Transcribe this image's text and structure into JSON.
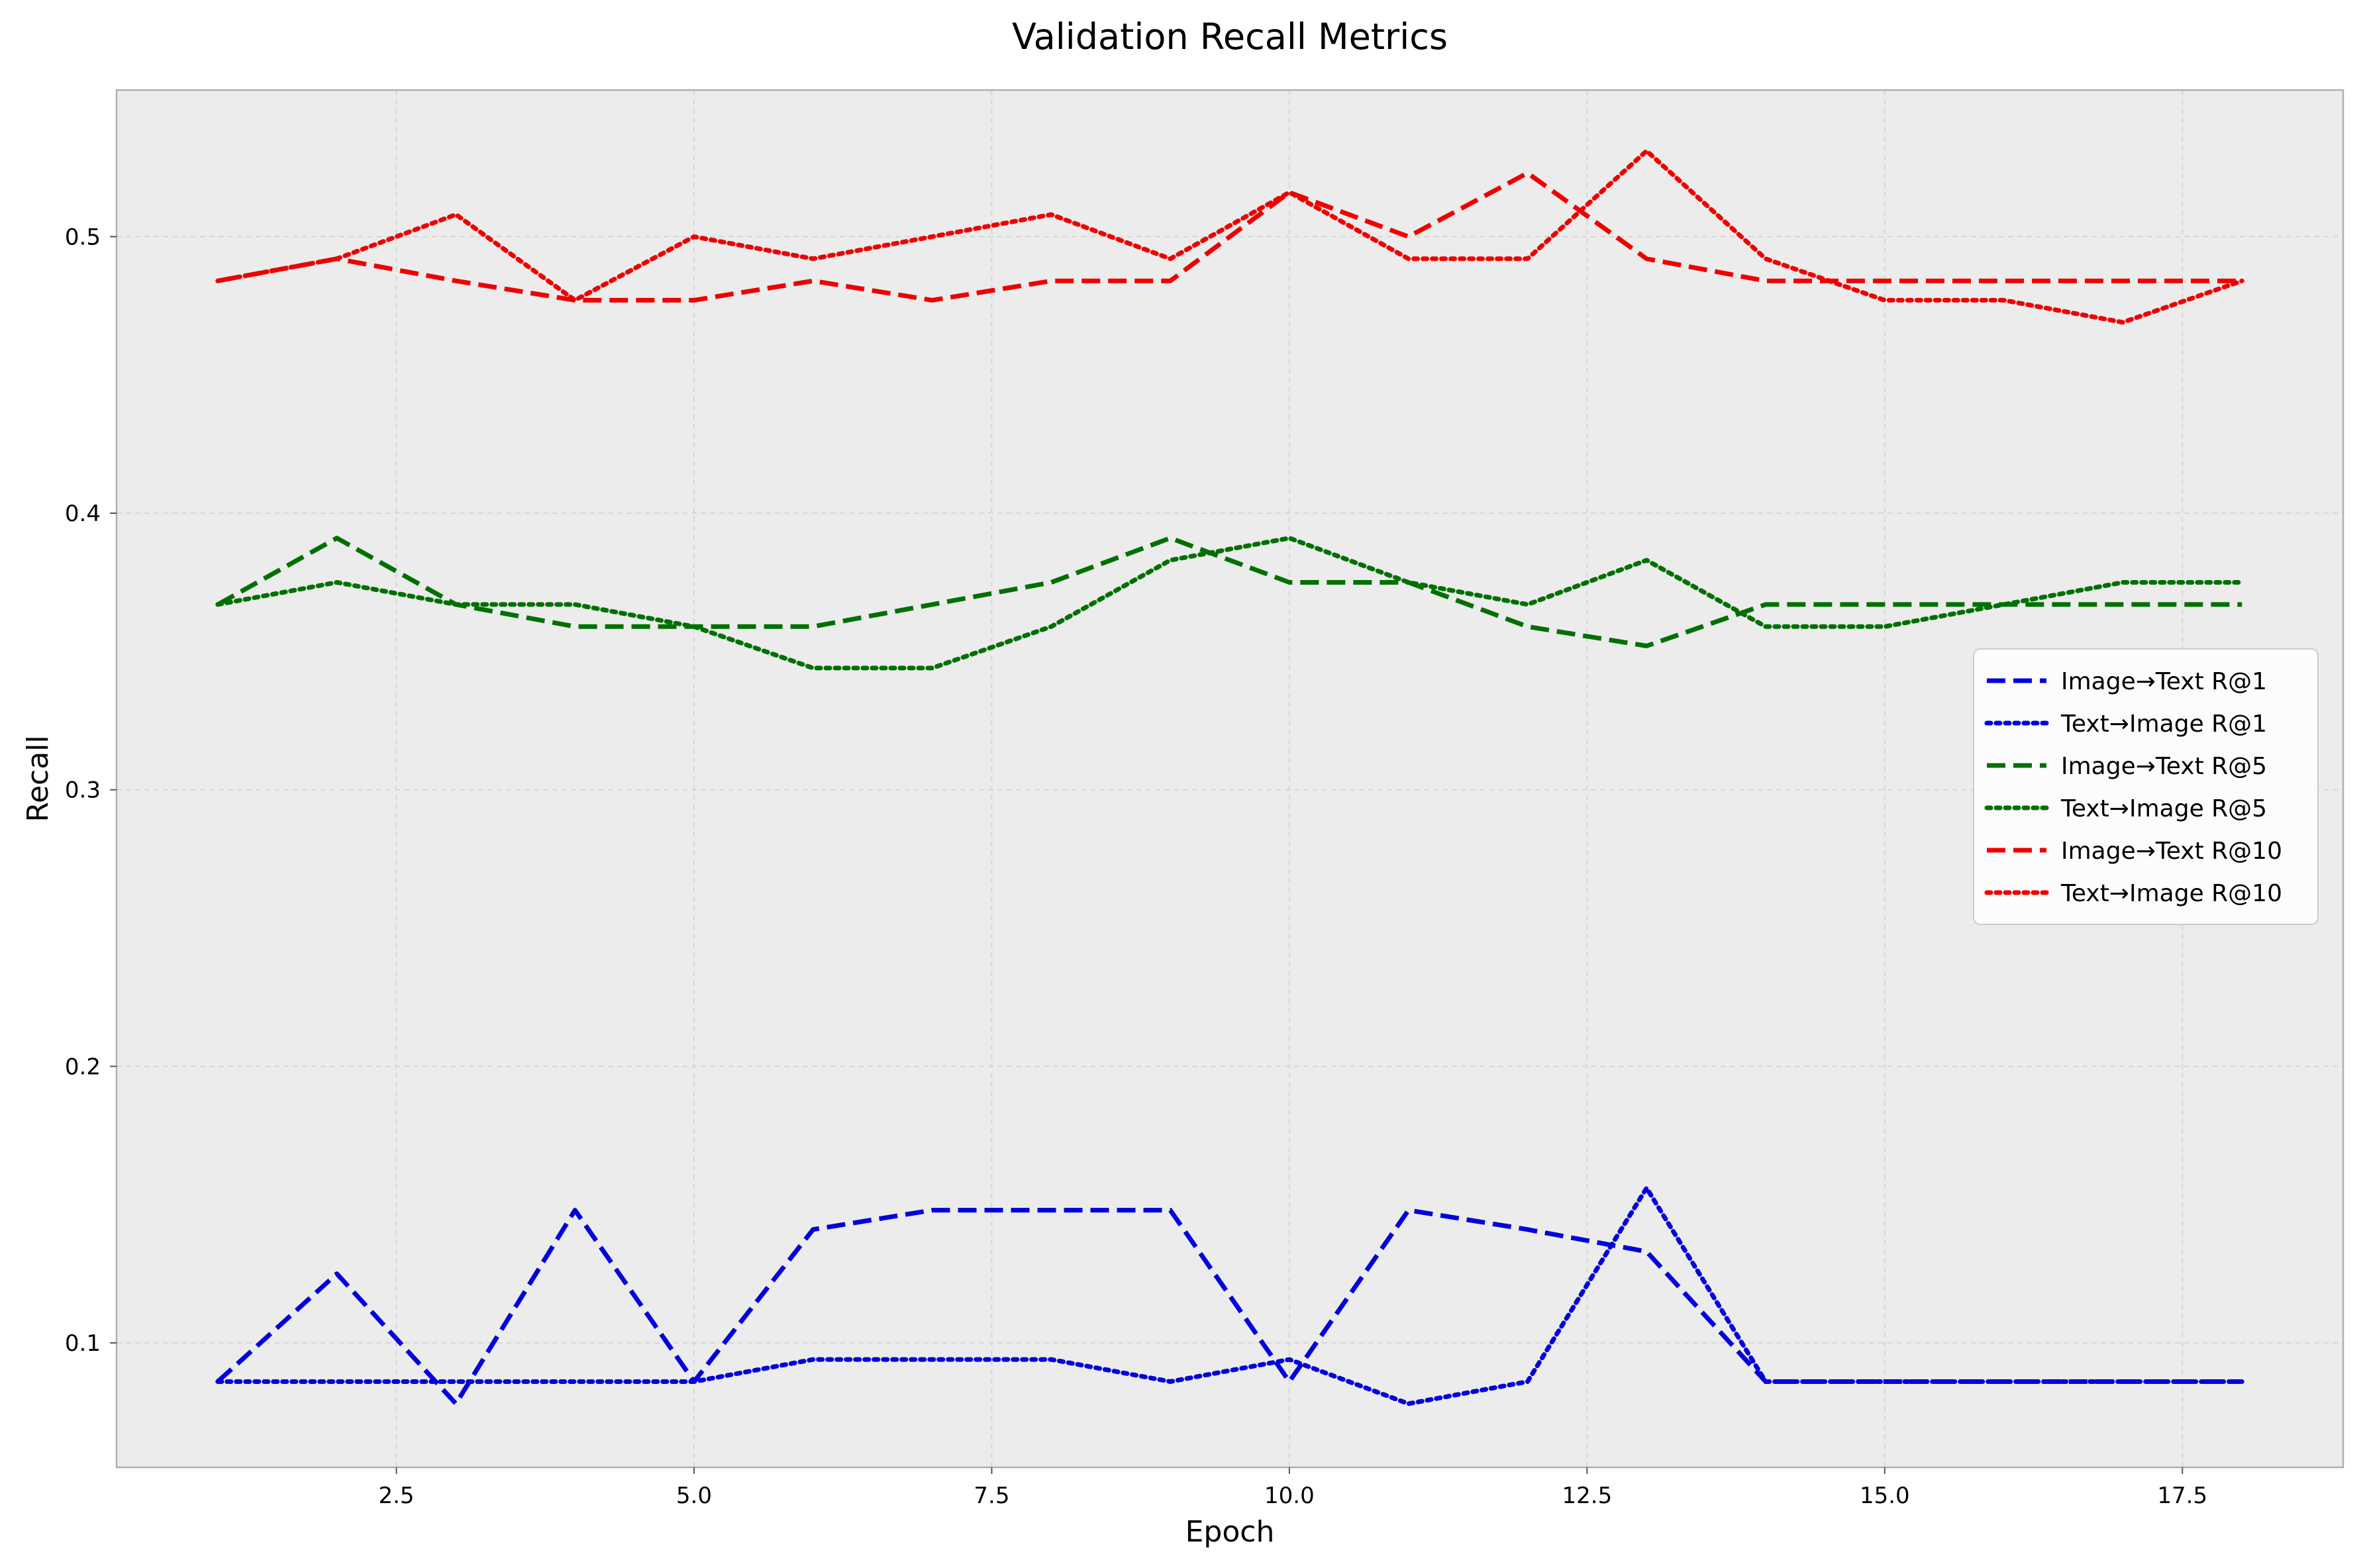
{
  "chart_data": {
    "type": "line",
    "title": "Validation Recall Metrics",
    "xlabel": "Epoch",
    "ylabel": "Recall",
    "xlim": [
      0.15,
      18.85
    ],
    "ylim": [
      0.055,
      0.553
    ],
    "x_ticks": [
      2.5,
      5.0,
      7.5,
      10.0,
      12.5,
      15.0,
      17.5
    ],
    "x_tick_labels": [
      "2.5",
      "5.0",
      "7.5",
      "10.0",
      "12.5",
      "15.0",
      "17.5"
    ],
    "y_ticks": [
      0.1,
      0.2,
      0.3,
      0.4,
      0.5
    ],
    "y_tick_labels": [
      "0.1",
      "0.2",
      "0.3",
      "0.4",
      "0.5"
    ],
    "grid": true,
    "background": "#ececec",
    "legend_position": "center-right",
    "x": [
      1,
      2,
      3,
      4,
      5,
      6,
      7,
      8,
      9,
      10,
      11,
      12,
      13,
      14,
      15,
      16,
      17,
      18
    ],
    "series": [
      {
        "name": "Image→Text R@1",
        "color": "#0000dd",
        "style": "dashed",
        "values": [
          0.086,
          0.125,
          0.078,
          0.148,
          0.086,
          0.141,
          0.148,
          0.148,
          0.148,
          0.086,
          0.148,
          0.141,
          0.133,
          0.086,
          0.086,
          0.086,
          0.086,
          0.086
        ]
      },
      {
        "name": "Text→Image R@1",
        "color": "#0000dd",
        "style": "dotted",
        "values": [
          0.086,
          0.086,
          0.086,
          0.086,
          0.086,
          0.094,
          0.094,
          0.094,
          0.086,
          0.094,
          0.078,
          0.086,
          0.156,
          0.086,
          0.086,
          0.086,
          0.086,
          0.086
        ]
      },
      {
        "name": "Image→Text R@5",
        "color": "#007000",
        "style": "dashed",
        "values": [
          0.367,
          0.391,
          0.367,
          0.359,
          0.359,
          0.359,
          0.367,
          0.375,
          0.391,
          0.375,
          0.375,
          0.359,
          0.352,
          0.367,
          0.367,
          0.367,
          0.367,
          0.367
        ]
      },
      {
        "name": "Text→Image R@5",
        "color": "#007000",
        "style": "dotted",
        "values": [
          0.367,
          0.375,
          0.367,
          0.367,
          0.359,
          0.344,
          0.344,
          0.359,
          0.383,
          0.391,
          0.375,
          0.367,
          0.383,
          0.359,
          0.359,
          0.367,
          0.375,
          0.375
        ]
      },
      {
        "name": "Image→Text R@10",
        "color": "#ee0000",
        "style": "dashed",
        "values": [
          0.484,
          0.492,
          0.484,
          0.477,
          0.477,
          0.484,
          0.477,
          0.484,
          0.484,
          0.516,
          0.5,
          0.523,
          0.492,
          0.484,
          0.484,
          0.484,
          0.484,
          0.484
        ]
      },
      {
        "name": "Text→Image R@10",
        "color": "#ee0000",
        "style": "dotted",
        "values": [
          0.484,
          0.492,
          0.508,
          0.477,
          0.5,
          0.492,
          0.5,
          0.508,
          0.492,
          0.516,
          0.492,
          0.492,
          0.531,
          0.492,
          0.477,
          0.477,
          0.469,
          0.484
        ]
      }
    ]
  }
}
